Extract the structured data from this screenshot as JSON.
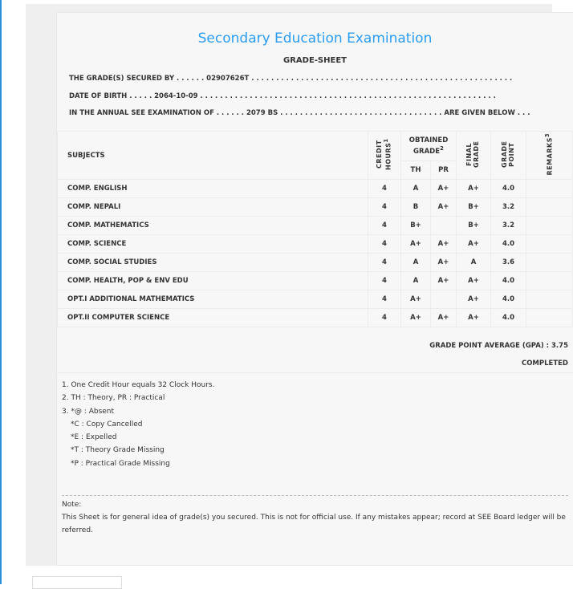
{
  "header": {
    "title": "Secondary Education Examination",
    "subtitle": "GRADE-SHEET"
  },
  "info": {
    "secured_by": "THE GRADE(S) SECURED BY . . . . . . 02907626T . . . . . . . . . . . . . . . . . . . . . . . . . . . . . . . . . . . . . . . . . . . . . . . . . . . . .",
    "dob": "DATE OF BIRTH . . . . . 2064-10-09 . . . . . . . . . . . . . . . . . . . . . . . . . . . . . . . . . . . . . . . . . . . . . . . . . . . . . . . . . . . .",
    "exam": "IN THE ANNUAL SEE EXAMINATION OF . . . . . . 2079 BS . . . . . . . . . . . . . . . . . . . . . . . . . . . . . . . . . ARE GIVEN BELOW . . ."
  },
  "table": {
    "headers": {
      "subjects": "SUBJECTS",
      "credit": "CREDIT HOURS",
      "credit_sup": "1",
      "obtained": "OBTAINED GRADE",
      "obtained_sup": "2",
      "th": "TH",
      "pr": "PR",
      "final": "FINAL GRADE",
      "gp": "GRADE POINT",
      "remarks": "REMARKS",
      "remarks_sup": "3"
    },
    "rows": [
      {
        "subject": "COMP. ENGLISH",
        "credit": "4",
        "th": "A",
        "pr": "A+",
        "final": "A+",
        "gp": "4.0",
        "remarks": ""
      },
      {
        "subject": "COMP. NEPALI",
        "credit": "4",
        "th": "B",
        "pr": "A+",
        "final": "B+",
        "gp": "3.2",
        "remarks": ""
      },
      {
        "subject": "COMP. MATHEMATICS",
        "credit": "4",
        "th": "B+",
        "pr": "",
        "final": "B+",
        "gp": "3.2",
        "remarks": ""
      },
      {
        "subject": "COMP. SCIENCE",
        "credit": "4",
        "th": "A+",
        "pr": "A+",
        "final": "A+",
        "gp": "4.0",
        "remarks": ""
      },
      {
        "subject": "COMP. SOCIAL STUDIES",
        "credit": "4",
        "th": "A",
        "pr": "A+",
        "final": "A",
        "gp": "3.6",
        "remarks": ""
      },
      {
        "subject": "COMP. HEALTH, POP & ENV EDU",
        "credit": "4",
        "th": "A",
        "pr": "A+",
        "final": "A+",
        "gp": "4.0",
        "remarks": ""
      },
      {
        "subject": "OPT.I ADDITIONAL MATHEMATICS",
        "credit": "4",
        "th": "A+",
        "pr": "",
        "final": "A+",
        "gp": "4.0",
        "remarks": ""
      },
      {
        "subject": "OPT.II COMPUTER SCIENCE",
        "credit": "4",
        "th": "A+",
        "pr": "A+",
        "final": "A+",
        "gp": "4.0",
        "remarks": ""
      }
    ]
  },
  "summary": {
    "gpa": "GRADE POINT AVERAGE (GPA) : 3.75",
    "status": "COMPLETED"
  },
  "footnotes": [
    "1. One Credit Hour equals 32 Clock Hours.",
    "2. TH : Theory, PR : Practical",
    "3. *@ : Absent",
    "*C : Copy Cancelled",
    "*E : Expelled",
    "*T : Theory Grade Missing",
    "*P : Practical Grade Missing"
  ],
  "note": {
    "label": "Note:",
    "text": "This Sheet is for general idea of grade(s) you secured. This is not for official use. If any mistakes appear; record at SEE Board ledger will be referred."
  }
}
